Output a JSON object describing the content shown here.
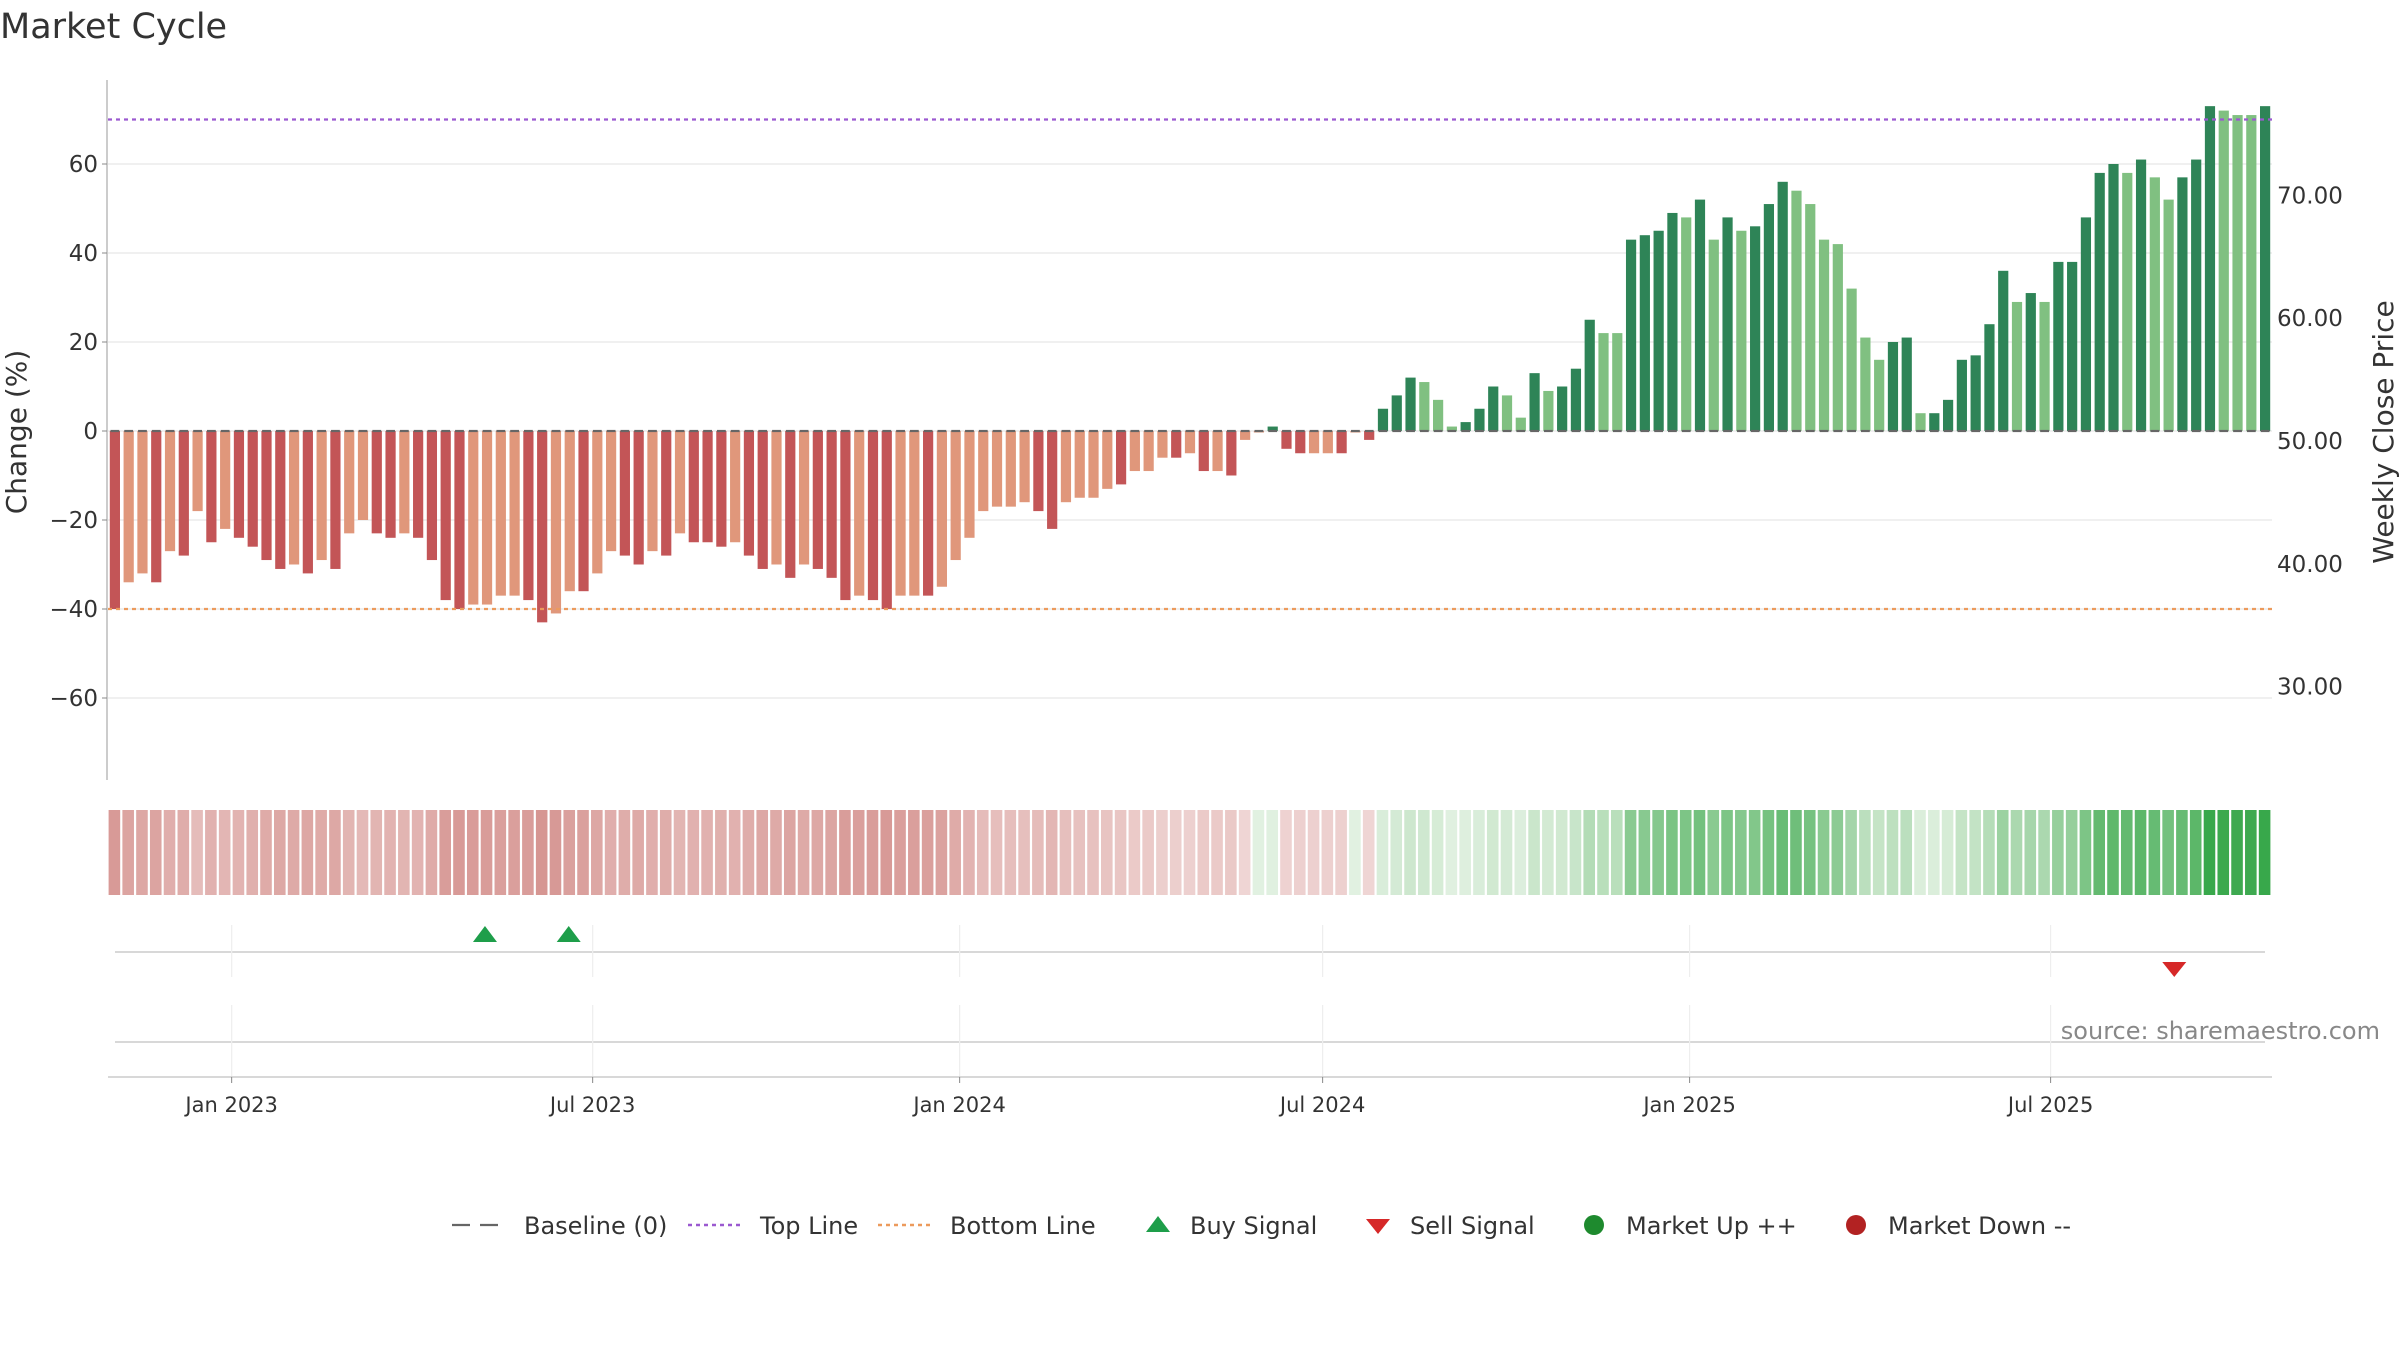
{
  "chart_data": {
    "type": "bar",
    "title": "Market Cycle",
    "ylabel": "Change (%)",
    "y2label": "Weekly Close Price",
    "source": "source: sharemaestro.com",
    "ylim": [
      -80,
      76
    ],
    "y2lim": [
      20,
      79
    ],
    "yticks": [
      "60",
      "40",
      "20",
      "0",
      "−20",
      "−40",
      "−60"
    ],
    "yticks_values": [
      60,
      40,
      20,
      0,
      -20,
      -40,
      -60
    ],
    "y2ticks": [
      "70.00",
      "60.00",
      "50.00",
      "40.00",
      "30.00"
    ],
    "y2ticks_values": [
      70,
      60,
      50,
      40,
      30
    ],
    "top_line": 70,
    "bottom_line": -40,
    "x_start": "2022-10-31",
    "x_end": "2025-10-20",
    "xticks": [
      {
        "label": "Jan 2023",
        "date": "2023-01-01"
      },
      {
        "label": "Jul 2023",
        "date": "2023-07-01"
      },
      {
        "label": "Jan 2024",
        "date": "2024-01-01"
      },
      {
        "label": "Jul 2024",
        "date": "2024-07-01"
      },
      {
        "label": "Jan 2025",
        "date": "2025-01-01"
      },
      {
        "label": "Jul 2025",
        "date": "2025-07-01"
      }
    ],
    "values": [
      -40,
      -34,
      -32,
      -34,
      -27,
      -28,
      -18,
      -25,
      -22,
      -24,
      -26,
      -29,
      -31,
      -30,
      -32,
      -29,
      -31,
      -23,
      -20,
      -23,
      -24,
      -23,
      -24,
      -29,
      -38,
      -40,
      -39,
      -39,
      -37,
      -37,
      -38,
      -43,
      -41,
      -36,
      -36,
      -32,
      -27,
      -28,
      -30,
      -27,
      -28,
      -23,
      -25,
      -25,
      -26,
      -25,
      -28,
      -31,
      -30,
      -33,
      -30,
      -31,
      -33,
      -38,
      -37,
      -38,
      -40,
      -37,
      -37,
      -37,
      -35,
      -29,
      -24,
      -18,
      -17,
      -17,
      -16,
      -18,
      -22,
      -16,
      -15,
      -15,
      -13,
      -12,
      -9,
      -9,
      -6,
      -6,
      -5,
      -9,
      -9,
      -10,
      -2,
      0,
      1,
      -4,
      -5,
      -5,
      -5,
      -5,
      0,
      -2,
      5,
      8,
      12,
      11,
      7,
      1,
      2,
      5,
      10,
      8,
      3,
      13,
      9,
      10,
      14,
      25,
      22,
      22,
      43,
      44,
      45,
      49,
      48,
      52,
      43,
      48,
      45,
      46,
      51,
      56,
      54,
      51,
      43,
      42,
      32,
      21,
      16,
      20,
      21,
      4,
      4,
      7,
      16,
      17,
      24,
      36,
      29,
      31,
      29,
      38,
      38,
      48,
      58,
      60,
      58,
      61,
      57,
      52,
      57,
      61,
      73,
      72,
      71,
      71,
      73
    ],
    "colors_bar": [
      "#c35557",
      "#e0977b",
      "#e0977b",
      "#c35557",
      "#e0977b",
      "#c35557",
      "#e0977b",
      "#c35557",
      "#e0977b",
      "#c35557",
      "#c35557",
      "#c35557",
      "#c35557",
      "#e0977b",
      "#c35557",
      "#e0977b",
      "#c35557",
      "#e0977b",
      "#e0977b",
      "#c35557",
      "#c35557",
      "#e0977b",
      "#c35557",
      "#c35557",
      "#c35557",
      "#c35557",
      "#e0977b",
      "#e0977b",
      "#e0977b",
      "#e0977b",
      "#c35557",
      "#c35557",
      "#e0977b",
      "#e0977b",
      "#c35557",
      "#e0977b",
      "#e0977b",
      "#c35557",
      "#c35557",
      "#e0977b",
      "#c35557",
      "#e0977b",
      "#c35557",
      "#c35557",
      "#c35557",
      "#e0977b",
      "#c35557",
      "#c35557",
      "#e0977b",
      "#c35557",
      "#e0977b",
      "#c35557",
      "#c35557",
      "#c35557",
      "#e0977b",
      "#c35557",
      "#c35557",
      "#e0977b",
      "#e0977b",
      "#c35557",
      "#e0977b",
      "#e0977b",
      "#e0977b",
      "#e0977b",
      "#e0977b",
      "#e0977b",
      "#e0977b",
      "#c35557",
      "#c35557",
      "#e0977b",
      "#e0977b",
      "#e0977b",
      "#e0977b",
      "#c35557",
      "#e0977b",
      "#e0977b",
      "#e0977b",
      "#c35557",
      "#e0977b",
      "#c35557",
      "#e0977b",
      "#c35557",
      "#e0977b",
      "#e0977b",
      "#2e8457",
      "#c35557",
      "#c35557",
      "#e0977b",
      "#e0977b",
      "#c35557",
      "#e0977b",
      "#c35557",
      "#2e8457",
      "#2e8457",
      "#2e8457",
      "#80c081",
      "#80c081",
      "#80c081",
      "#2e8457",
      "#2e8457",
      "#2e8457",
      "#80c081",
      "#80c081",
      "#2e8457",
      "#80c081",
      "#2e8457",
      "#2e8457",
      "#2e8457",
      "#80c081",
      "#80c081",
      "#2e8457",
      "#2e8457",
      "#2e8457",
      "#2e8457",
      "#80c081",
      "#2e8457",
      "#80c081",
      "#2e8457",
      "#80c081",
      "#2e8457",
      "#2e8457",
      "#2e8457",
      "#80c081",
      "#80c081",
      "#80c081",
      "#80c081",
      "#80c081",
      "#80c081",
      "#80c081",
      "#2e8457",
      "#2e8457",
      "#80c081",
      "#2e8457",
      "#2e8457",
      "#2e8457",
      "#2e8457",
      "#2e8457",
      "#2e8457",
      "#80c081",
      "#2e8457",
      "#80c081",
      "#2e8457",
      "#2e8457",
      "#2e8457",
      "#2e8457",
      "#2e8457",
      "#80c081",
      "#2e8457",
      "#80c081",
      "#80c081",
      "#2e8457",
      "#2e8457",
      "#2e8457",
      "#80c081",
      "#80c081",
      "#80c081",
      "#2e8457"
    ],
    "buy_signals": [
      "2023-05-08",
      "2023-06-19"
    ],
    "sell_signals": [
      "2025-09-01"
    ],
    "legend": [
      {
        "label": "Baseline (0)",
        "icon": "dash-line",
        "color": "#666666"
      },
      {
        "label": "Top Line",
        "icon": "dotted-line",
        "color": "#9b59d0"
      },
      {
        "label": "Bottom Line",
        "icon": "dotted-line",
        "color": "#ec9a5c"
      },
      {
        "label": "Buy Signal",
        "icon": "triangle-up",
        "color": "#1e9e4a"
      },
      {
        "label": "Sell Signal",
        "icon": "triangle-down",
        "color": "#d62828"
      },
      {
        "label": "Market Up ++",
        "icon": "circle",
        "color": "#1e8a2e"
      },
      {
        "label": "Market Down --",
        "icon": "circle",
        "color": "#b22222"
      }
    ]
  }
}
